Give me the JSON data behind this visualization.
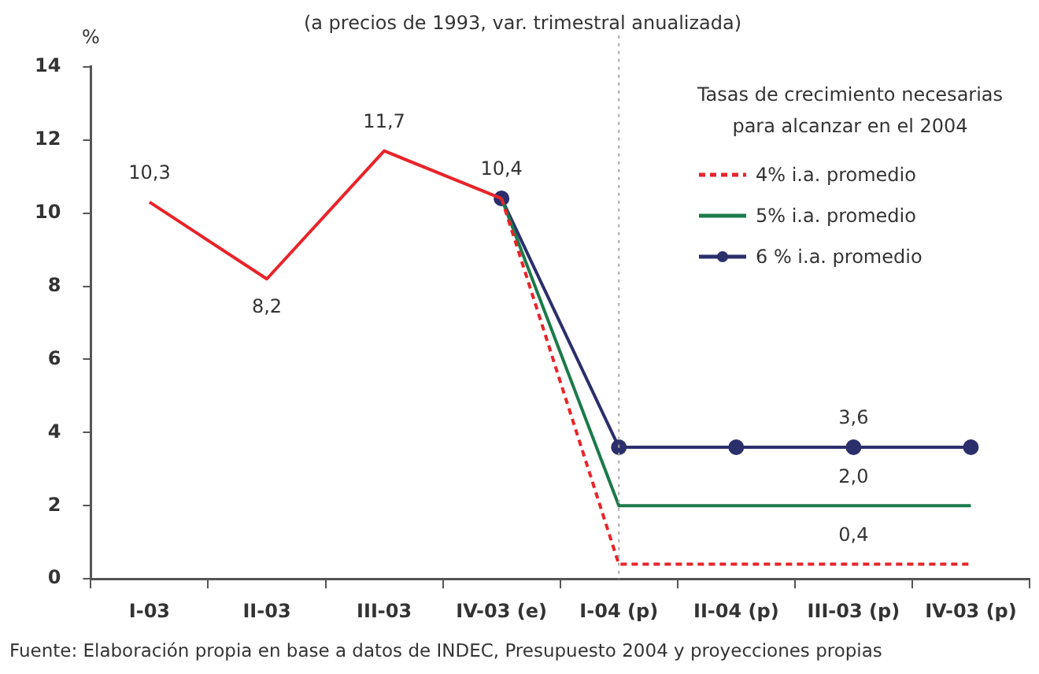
{
  "chart_data": {
    "type": "line",
    "title": "(a precios de 1993, var. trimestral anualizada)",
    "ylabel": "%",
    "legend_title": "Tasas de crecimiento necesarias para alcanzar en el 2004",
    "annotations": [
      "Fuente: Elaboración propia en base a datos de INDEC, Presupuesto 2004 y proyecciones propias"
    ],
    "categories": [
      "I-03",
      "II-03",
      "III-03",
      "IV-03 (e)",
      "I-04 (p)",
      "II-04 (p)",
      "III-03 (p)",
      "IV-03 (p)"
    ],
    "series": [
      {
        "color": "#e8242a",
        "values": [
          10.3,
          8.2,
          11.7,
          10.4,
          null,
          null,
          null,
          null
        ],
        "value_labels": [
          "10,3",
          "8,2",
          "11,7",
          "10,4",
          null,
          null,
          null,
          null
        ],
        "marker": "none",
        "line_style": "solid"
      },
      {
        "name": "4% i.a. promedio",
        "color": "#e8242a",
        "values": [
          null,
          null,
          null,
          10.4,
          0.4,
          0.4,
          0.4,
          0.4
        ],
        "value_labels": [
          null,
          null,
          null,
          null,
          null,
          null,
          "0,4",
          null
        ],
        "marker": "none",
        "line_style": "dashed"
      },
      {
        "name": "5% i.a. promedio",
        "color": "#1b7a4a",
        "values": [
          null,
          null,
          null,
          10.4,
          2.0,
          2.0,
          2.0,
          2.0
        ],
        "value_labels": [
          null,
          null,
          null,
          null,
          null,
          null,
          "2,0",
          null
        ],
        "marker": "none",
        "line_style": "solid"
      },
      {
        "name": "6 % i.a. promedio",
        "color": "#2b2f6b",
        "values": [
          null,
          null,
          null,
          10.4,
          3.6,
          3.6,
          3.6,
          3.6
        ],
        "value_labels": [
          null,
          null,
          null,
          null,
          null,
          null,
          "3,6",
          null
        ],
        "marker": "circle",
        "line_style": "solid"
      }
    ],
    "ylim": [
      0,
      14
    ],
    "yticks": [
      0,
      2,
      4,
      6,
      8,
      10,
      12,
      14
    ],
    "ref_lines": [
      {
        "axis": "x",
        "value": "I-04 (p)",
        "color": "#aaaaaa",
        "line_style": "dotted"
      }
    ],
    "grid": false,
    "legend": "top right"
  }
}
